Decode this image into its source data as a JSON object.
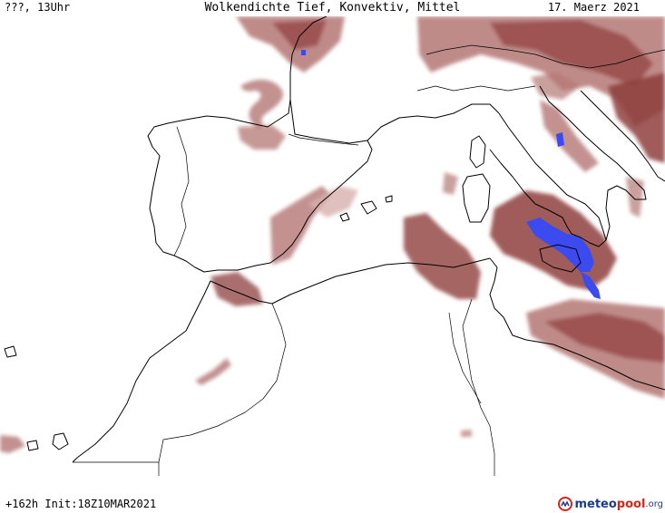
{
  "header": {
    "left_label": "???, 13Uhr",
    "title": "Wolkendichte   Tief, Konvektiv, Mittel",
    "date": "17. Maerz 2021"
  },
  "footer": {
    "run_info": "+162h  Init:18Z10MAR2021",
    "logo_part1": "meteo",
    "logo_part2": "pool",
    "logo_part3": ".org"
  },
  "colors": {
    "cloud_light": "#d8b0ae",
    "cloud_mid": "#b47774",
    "cloud_dark": "#8e3f3c",
    "precip": "#3b4bf0",
    "coastline": "#000000",
    "land": "#ffffff"
  },
  "icons": {
    "logo": "meteopool-logo-icon"
  }
}
